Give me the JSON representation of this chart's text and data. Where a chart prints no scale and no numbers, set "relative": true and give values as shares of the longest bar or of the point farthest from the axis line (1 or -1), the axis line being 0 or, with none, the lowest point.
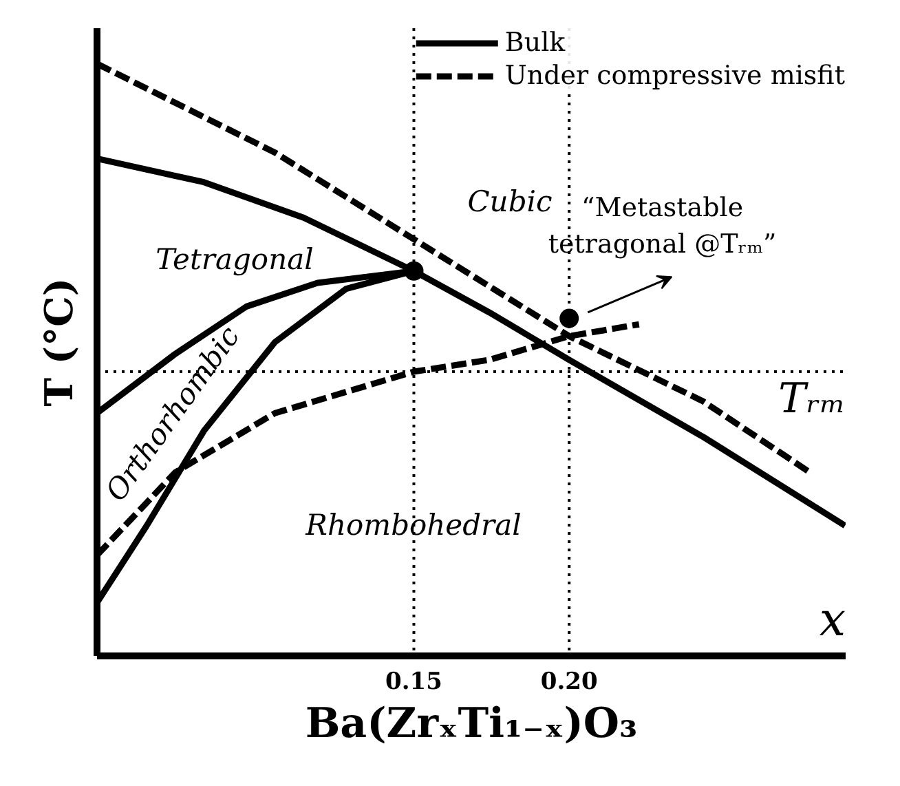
{
  "chart_data": {
    "type": "line",
    "relative": true,
    "xlabel": "Ba(ZrₓTi₁₋ₓ)O₃",
    "ylabel": "T (°C)",
    "xlim": [
      0.048,
      0.289
    ],
    "xticks": [
      {
        "value": 0.15,
        "label": "0.15"
      },
      {
        "value": 0.2,
        "label": "0.20"
      }
    ],
    "tick_labels": "x",
    "grid": false,
    "legend": "top right",
    "series": [
      {
        "name": "Bulk",
        "color": "#000000",
        "line_style": "solid",
        "x": [
          0.048,
          0.0824,
          0.1145,
          0.15,
          0.1743,
          0.2,
          0.2431,
          0.2888
        ],
        "values": [
          0.84,
          0.8,
          0.74,
          0.65,
          0.58,
          0.5,
          0.37,
          0.22
        ]
      },
      {
        "color": "#000000",
        "line_style": "solid",
        "x": [
          0.048,
          0.0732,
          0.0961,
          0.119,
          0.15
        ],
        "values": [
          0.41,
          0.51,
          0.59,
          0.63,
          0.65
        ]
      },
      {
        "color": "#000000",
        "line_style": "solid",
        "x": [
          0.048,
          0.064,
          0.0824,
          0.1053,
          0.1282,
          0.15
        ],
        "values": [
          0.09,
          0.22,
          0.38,
          0.53,
          0.62,
          0.65
        ]
      },
      {
        "name": "Under compressive misfit",
        "color": "#000000",
        "line_style": "dashed",
        "x": [
          0.048,
          0.1053,
          0.1511,
          0.2,
          0.2431,
          0.2775
        ],
        "values": [
          1.0,
          0.85,
          0.7,
          0.54,
          0.43,
          0.31
        ]
      },
      {
        "color": "#000000",
        "line_style": "dashed",
        "x": [
          0.048,
          0.0732,
          0.1053,
          0.15,
          0.1743,
          0.2,
          0.2225
        ],
        "values": [
          0.17,
          0.31,
          0.41,
          0.48,
          0.5,
          0.54,
          0.56
        ]
      },
      {
        "type": "scatter",
        "marker": "circle",
        "color": "#000000",
        "x": [
          0.15,
          0.2
        ],
        "values": [
          0.65,
          0.57
        ]
      }
    ],
    "ref_lines": [
      {
        "axis": "y",
        "value": 0.48,
        "label": "Tᵣₘ",
        "line_style": "dotted"
      },
      {
        "axis": "x",
        "value": 0.15,
        "line_style": "dotted"
      },
      {
        "axis": "x",
        "value": 0.2,
        "line_style": "dotted"
      }
    ],
    "annotations": [
      {
        "text": "“Metastable\ntetragonal @Tᵣₘ”",
        "x": 0.2,
        "y": 0.57
      },
      "Cubic",
      "Tetragonal",
      "Orthorhombic",
      "Rhombohedral",
      "x"
    ]
  }
}
